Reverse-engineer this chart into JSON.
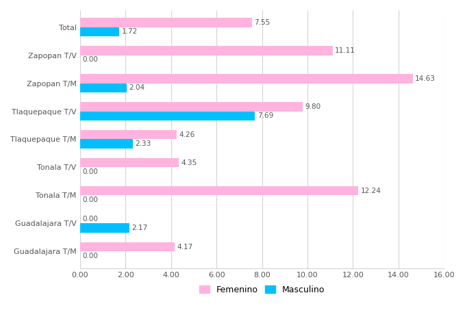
{
  "categories": [
    "Guadalajara T/M",
    "Guadalajara T/V",
    "Tonala T/M",
    "Tonala T/V",
    "Tlaquepaque T/M",
    "Tlaquepaque T/V",
    "Zapopan T/M",
    "Zapopan T/V",
    "Total"
  ],
  "femenino": [
    4.17,
    0.0,
    12.24,
    4.35,
    4.26,
    9.8,
    14.63,
    11.11,
    7.55
  ],
  "masculino": [
    0.0,
    2.17,
    0.0,
    0.0,
    2.33,
    7.69,
    2.04,
    0.0,
    1.72
  ],
  "color_femenino": "#FFB3DE",
  "color_masculino": "#00BFFF",
  "xlim": [
    0,
    16
  ],
  "xtick_labels": [
    "0.00",
    "2.00",
    "4.00",
    "6.00",
    "8.00",
    "10.00",
    "12.00",
    "14.00",
    "16.00"
  ],
  "xtick_vals": [
    0,
    2,
    4,
    6,
    8,
    10,
    12,
    14,
    16
  ],
  "bar_height": 0.32,
  "label_fontsize": 7.5,
  "tick_fontsize": 8,
  "legend_fontsize": 9,
  "background_color": "#FFFFFF",
  "grid_color": "#D3D3D3"
}
